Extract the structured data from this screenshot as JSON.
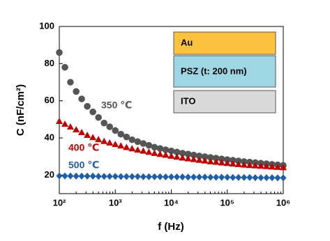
{
  "chart_data": {
    "type": "scatter",
    "xlabel": "f (Hz)",
    "ylabel": "C (nF/cm²)",
    "xscale": "log",
    "xlim": [
      100,
      1000000
    ],
    "xticks": [
      {
        "value": 100,
        "label": "10²"
      },
      {
        "value": 1000,
        "label": "10³"
      },
      {
        "value": 10000,
        "label": "10⁴"
      },
      {
        "value": 100000,
        "label": "10⁵"
      },
      {
        "value": 1000000,
        "label": "10⁶"
      }
    ],
    "ylim": [
      10,
      100
    ],
    "yticks": [
      20,
      40,
      60,
      80,
      100
    ],
    "x": [
      100,
      126,
      158,
      200,
      251,
      316,
      398,
      501,
      631,
      794,
      1000,
      1259,
      1585,
      1995,
      2512,
      3162,
      3981,
      5012,
      6310,
      7943,
      10000,
      12589,
      15849,
      19953,
      25119,
      31623,
      39811,
      50119,
      63096,
      79433,
      100000,
      125893,
      158489,
      199526,
      251189,
      316228,
      398107,
      501187,
      630957,
      794328,
      1000000
    ],
    "series": [
      {
        "name": "350 ℃",
        "color": "#555555",
        "marker": "circle",
        "values": [
          86,
          78,
          70,
          65,
          61,
          57,
          54,
          51,
          48,
          46,
          44,
          42,
          40.5,
          39,
          38,
          37,
          36,
          35,
          34.3,
          33.6,
          33,
          32.4,
          31.8,
          31.3,
          30.8,
          30.3,
          29.9,
          29.5,
          29.1,
          28.7,
          28.3,
          28,
          27.6,
          27.3,
          27,
          26.7,
          26.4,
          26.1,
          25.8,
          25.5,
          25.2
        ]
      },
      {
        "name": "400 ℃",
        "color": "#c00000",
        "marker": "triangle",
        "values": [
          49,
          47.5,
          46,
          44.5,
          43,
          41.5,
          40.3,
          39.2,
          38.2,
          37.4,
          36.6,
          35.8,
          35,
          34.3,
          33.6,
          33,
          32.4,
          31.8,
          31.3,
          30.8,
          30.3,
          29.8,
          29.3,
          28.9,
          28.5,
          28.1,
          27.7,
          27.3,
          27,
          26.7,
          26.4,
          26.1,
          25.8,
          25.5,
          25.3,
          25.1,
          24.9,
          24.7,
          24.5,
          24.3,
          24.1
        ]
      },
      {
        "name": "500 ℃",
        "color": "#1f5fa8",
        "marker": "diamond",
        "values": [
          19.5,
          19.5,
          19.5,
          19.4,
          19.4,
          19.4,
          19.4,
          19.3,
          19.3,
          19.3,
          19.3,
          19.2,
          19.2,
          19.2,
          19.2,
          19.1,
          19.1,
          19.1,
          19.1,
          19,
          19,
          19,
          19,
          18.9,
          18.9,
          18.9,
          18.9,
          18.8,
          18.8,
          18.8,
          18.8,
          18.7,
          18.7,
          18.7,
          18.7,
          18.6,
          18.6,
          18.6,
          18.6,
          18.5,
          18.5
        ]
      }
    ],
    "inset": {
      "layers": [
        "Au",
        "PSZ  (t:  200 nm)",
        "ITO"
      ]
    }
  }
}
